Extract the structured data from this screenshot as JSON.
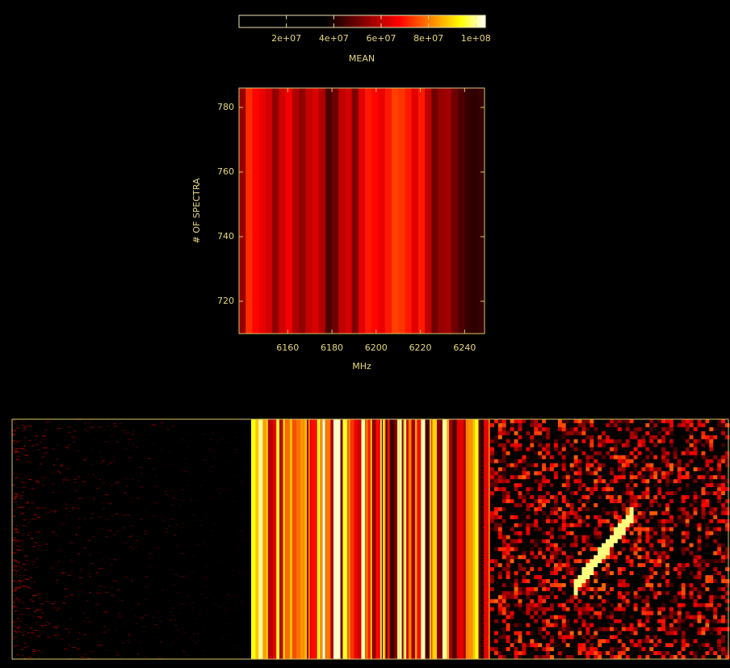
{
  "chart_data": {
    "type": "heatmap",
    "xlabel": "MHz",
    "ylabel": "# OF SPECTRA",
    "colorbar_label": "MEAN",
    "clim": [
      0,
      104000000
    ],
    "colorbar_ticks": [
      {
        "value": 20000000,
        "label": "2e+07"
      },
      {
        "value": 40000000,
        "label": "4e+07"
      },
      {
        "value": 60000000,
        "label": "6e+07"
      },
      {
        "value": 80000000,
        "label": "8e+07"
      },
      {
        "value": 100000000,
        "label": "1e+08"
      }
    ],
    "xlim": [
      6138,
      6249
    ],
    "xticks": [
      6160,
      6180,
      6200,
      6220,
      6240
    ],
    "ylim": [
      710,
      786
    ],
    "yticks": [
      720,
      740,
      760,
      780
    ],
    "x": [
      6139.5,
      6142.5,
      6145.5,
      6148.5,
      6151.5,
      6154.5,
      6157.5,
      6160.5,
      6163.5,
      6166.5,
      6169.5,
      6172.5,
      6175.5,
      6178.5,
      6181.5,
      6184.5,
      6187.5,
      6190.5,
      6193.5,
      6196.5,
      6199.5,
      6202.5,
      6205.5,
      6208.5,
      6211.5,
      6214.5,
      6217.5,
      6220.5,
      6223.5,
      6226.5,
      6229.5,
      6232.5,
      6235.5,
      6238.5,
      6241.5,
      6244.5,
      6247.5
    ],
    "values": [
      55000000,
      72000000,
      68000000,
      65000000,
      62000000,
      54000000,
      62000000,
      66000000,
      58000000,
      54000000,
      60000000,
      63000000,
      58000000,
      46000000,
      50000000,
      60000000,
      62000000,
      52000000,
      64000000,
      70000000,
      68000000,
      65000000,
      70000000,
      74000000,
      73000000,
      70000000,
      64000000,
      70000000,
      60000000,
      50000000,
      55000000,
      56000000,
      50000000,
      46000000,
      43000000,
      42000000,
      43000000
    ]
  }
}
